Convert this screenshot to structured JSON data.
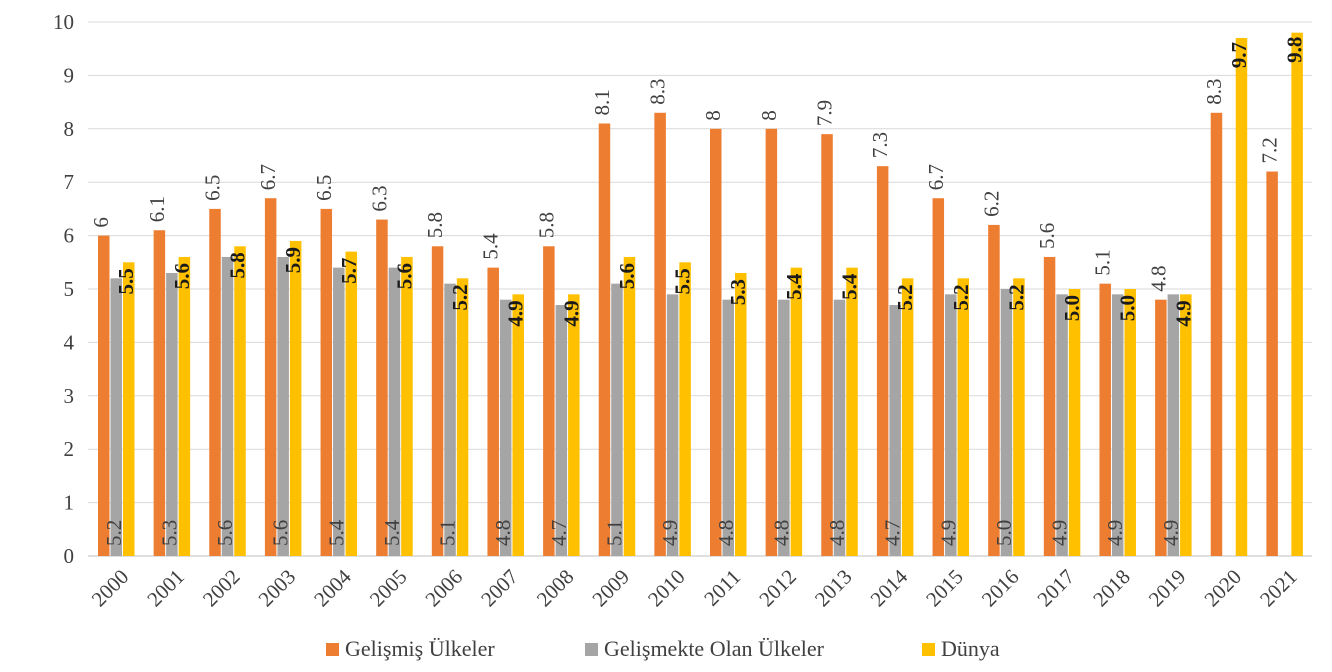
{
  "chart_data": {
    "type": "bar",
    "categories": [
      "2000",
      "2001",
      "2002",
      "2003",
      "2004",
      "2005",
      "2006",
      "2007",
      "2008",
      "2009",
      "2010",
      "2011",
      "2012",
      "2013",
      "2014",
      "2015",
      "2016",
      "2017",
      "2018",
      "2019",
      "2020",
      "2021"
    ],
    "series": [
      {
        "name": "Gelişmiş Ülkeler",
        "color": "#ED7D31",
        "values": [
          6,
          6.1,
          6.5,
          6.7,
          6.5,
          6.3,
          5.8,
          5.4,
          5.8,
          8.1,
          8.3,
          8,
          8,
          7.9,
          7.3,
          6.7,
          6.2,
          5.6,
          5.1,
          4.8,
          8.3,
          7.2
        ],
        "labels": [
          "6",
          "6.1",
          "6.5",
          "6.7",
          "6.5",
          "6.3",
          "5.8",
          "5.4",
          "5.8",
          "8.1",
          "8.3",
          "8",
          "8",
          "7.9",
          "7.3",
          "6.7",
          "6.2",
          "5.6",
          "5.1",
          "4.8",
          "8.3",
          "7.2"
        ]
      },
      {
        "name": "Gelişmekte Olan Ülkeler",
        "color": "#A5A5A5",
        "values": [
          5.2,
          5.3,
          5.6,
          5.6,
          5.4,
          5.4,
          5.1,
          4.8,
          4.7,
          5.1,
          4.9,
          4.8,
          4.8,
          4.8,
          4.7,
          4.9,
          5.0,
          4.9,
          4.9,
          4.9,
          null,
          null
        ],
        "labels": [
          "5.2",
          "5.3",
          "5.6",
          "5.6",
          "5.4",
          "5.4",
          "5.1",
          "4.8",
          "4.7",
          "5.1",
          "4.9",
          "4.8",
          "4.8",
          "4.8",
          "4.7",
          "4.9",
          "5.0",
          "4.9",
          "4.9",
          "4.9",
          "",
          ""
        ]
      },
      {
        "name": "Dünya",
        "color": "#FFC000",
        "values": [
          5.5,
          5.6,
          5.8,
          5.9,
          5.7,
          5.6,
          5.2,
          4.9,
          4.9,
          5.6,
          5.5,
          5.3,
          5.4,
          5.4,
          5.2,
          5.2,
          5.2,
          5.0,
          5.0,
          4.9,
          9.7,
          9.8
        ],
        "labels": [
          "5.5",
          "5.6",
          "5.8",
          "5.9",
          "5.7",
          "5.6",
          "5.2",
          "4.9",
          "4.9",
          "5.6",
          "5.5",
          "5.3",
          "5.4",
          "5.4",
          "5.2",
          "5.2",
          "5.2",
          "5.0",
          "5.0",
          "4.9",
          "9.7",
          "9.8"
        ]
      }
    ],
    "yticks": [
      "0",
      "1",
      "2",
      "3",
      "4",
      "5",
      "6",
      "7",
      "8",
      "9",
      "10"
    ],
    "ylim": [
      0,
      10
    ],
    "grid": true,
    "legend_position": "bottom"
  }
}
